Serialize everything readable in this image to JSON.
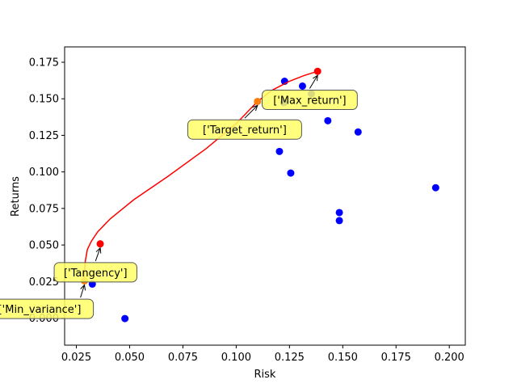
{
  "chart_data": {
    "type": "scatter",
    "xlabel": "Risk",
    "ylabel": "Returns",
    "xlim": [
      0.0195,
      0.2075
    ],
    "ylim": [
      -0.0185,
      0.1855
    ],
    "xticks": [
      0.025,
      0.05,
      0.075,
      0.1,
      0.125,
      0.15,
      0.175,
      0.2
    ],
    "xtick_labels": [
      "0.025",
      "0.050",
      "0.075",
      "0.100",
      "0.125",
      "0.150",
      "0.175",
      "0.200"
    ],
    "yticks": [
      0.0,
      0.025,
      0.05,
      0.075,
      0.1,
      0.125,
      0.15,
      0.175
    ],
    "ytick_labels": [
      "0.000",
      "0.025",
      "0.050",
      "0.075",
      "0.100",
      "0.125",
      "0.150",
      "0.175"
    ],
    "grid": false,
    "assets": {
      "color": "#0000ff",
      "points": [
        {
          "x": 0.0478,
          "y": -0.0003
        },
        {
          "x": 0.0325,
          "y": 0.0233
        },
        {
          "x": 0.1227,
          "y": 0.162
        },
        {
          "x": 0.1311,
          "y": 0.1587
        },
        {
          "x": 0.1223,
          "y": 0.1474
        },
        {
          "x": 0.1353,
          "y": 0.1535
        },
        {
          "x": 0.143,
          "y": 0.135
        },
        {
          "x": 0.1572,
          "y": 0.1273
        },
        {
          "x": 0.1203,
          "y": 0.114
        },
        {
          "x": 0.1256,
          "y": 0.0992
        },
        {
          "x": 0.1936,
          "y": 0.0892
        },
        {
          "x": 0.1484,
          "y": 0.0722
        },
        {
          "x": 0.1484,
          "y": 0.0667
        }
      ]
    },
    "frontier": {
      "color": "#ff0000",
      "points": [
        {
          "x": 0.0288,
          "y": 0.0255
        },
        {
          "x": 0.0287,
          "y": 0.031
        },
        {
          "x": 0.0292,
          "y": 0.039
        },
        {
          "x": 0.0302,
          "y": 0.047
        },
        {
          "x": 0.032,
          "y": 0.0525
        },
        {
          "x": 0.035,
          "y": 0.059
        },
        {
          "x": 0.041,
          "y": 0.068
        },
        {
          "x": 0.052,
          "y": 0.081
        },
        {
          "x": 0.068,
          "y": 0.097
        },
        {
          "x": 0.086,
          "y": 0.116
        },
        {
          "x": 0.1,
          "y": 0.133
        },
        {
          "x": 0.11,
          "y": 0.1482
        },
        {
          "x": 0.117,
          "y": 0.156
        },
        {
          "x": 0.125,
          "y": 0.162
        },
        {
          "x": 0.132,
          "y": 0.166
        },
        {
          "x": 0.1382,
          "y": 0.1688
        }
      ]
    },
    "highlights": [
      {
        "label": "['Min_variance']",
        "x": 0.0288,
        "y": 0.0255,
        "marker_color": "#ff7f0e",
        "text_x": 0.033,
        "text_y": 0.0063,
        "text_anchor": "end"
      },
      {
        "label": "['Tangency']",
        "x": 0.0362,
        "y": 0.0508,
        "marker_color": "#ff0000",
        "text_x": 0.034,
        "text_y": 0.0313,
        "text_anchor": "middle"
      },
      {
        "label": "['Target_return']",
        "x": 0.11,
        "y": 0.1482,
        "marker_color": "#ff7f0e",
        "text_x": 0.104,
        "text_y": 0.129,
        "text_anchor": "middle"
      },
      {
        "label": "['Max_return']",
        "x": 0.1382,
        "y": 0.1688,
        "marker_color": "#ff0000",
        "text_x": 0.1345,
        "text_y": 0.1493,
        "text_anchor": "middle"
      }
    ],
    "annotation_box": {
      "fill": "#ffff66",
      "stroke": "#555555"
    }
  }
}
